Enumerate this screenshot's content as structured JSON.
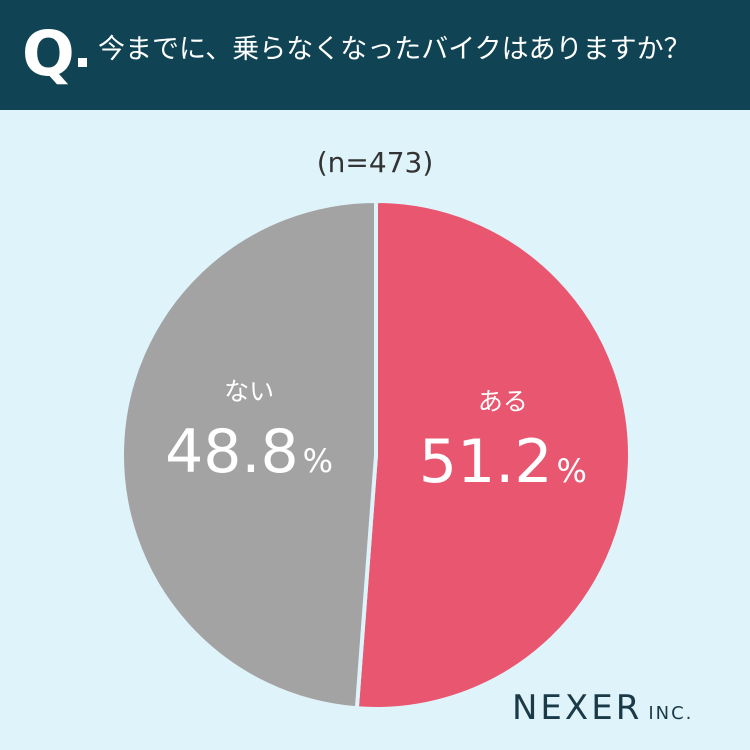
{
  "header": {
    "q_label": "Q",
    "question": "今までに、乗らなくなったバイクはありますか？"
  },
  "sample_size": "(n=473)",
  "colors": {
    "header_bg": "#104454",
    "background": "#dff3fa",
    "yes": "#e9566f",
    "no": "#a3a3a3"
  },
  "chart_data": {
    "type": "pie",
    "slices": [
      {
        "label": "ある",
        "value": 51.2,
        "value_text": "51.2",
        "unit": "%",
        "color": "#e9566f"
      },
      {
        "label": "ない",
        "value": 48.8,
        "value_text": "48.8",
        "unit": "%",
        "color": "#a3a3a3"
      }
    ],
    "start": "12 o'clock",
    "direction": "clockwise"
  },
  "logo": {
    "main": "NEXER",
    "sub": "INC."
  }
}
